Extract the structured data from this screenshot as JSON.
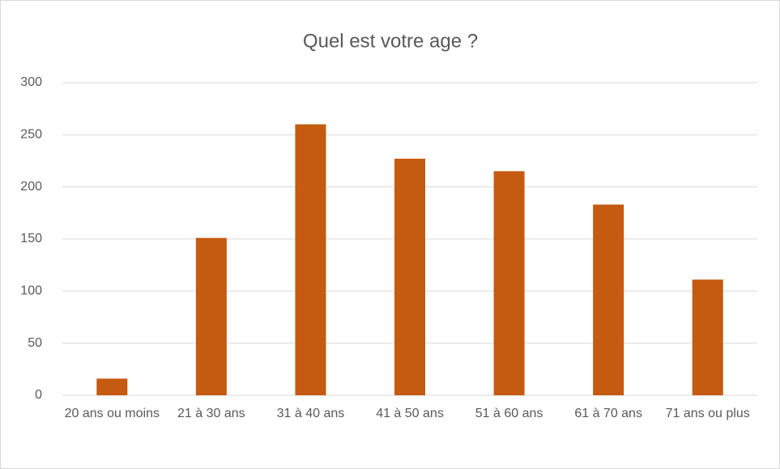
{
  "chart_data": {
    "type": "bar",
    "title": "Quel est votre age ?",
    "categories": [
      "20 ans ou moins",
      "21 à 30 ans",
      "31 à 40 ans",
      "41 à 50 ans",
      "51 à 60 ans",
      "61 à 70 ans",
      "71 ans ou plus"
    ],
    "values": [
      16,
      151,
      260,
      227,
      215,
      183,
      111
    ],
    "color": "#c55a11",
    "ylim": [
      0,
      300
    ],
    "yticks": [
      0,
      50,
      100,
      150,
      200,
      250,
      300
    ],
    "grid": true
  }
}
